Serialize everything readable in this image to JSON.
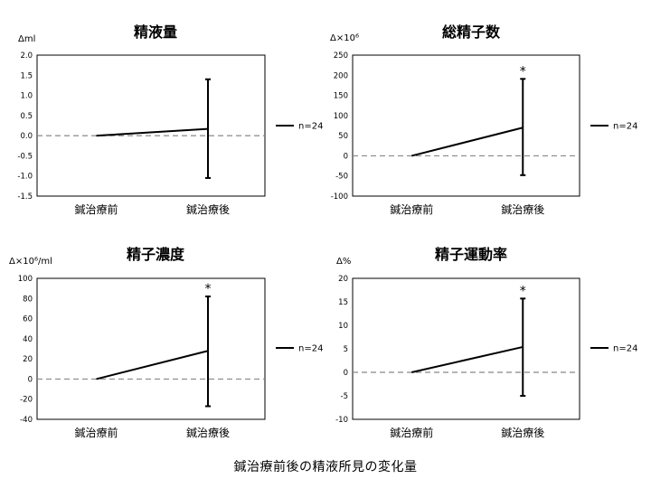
{
  "caption": "鍼治療前後の精液所見の変化量",
  "colors": {
    "line": "#000000",
    "baseline": "#888888",
    "frame": "#000000"
  },
  "chart_data": [
    {
      "type": "line",
      "title": "精液量",
      "ylabel": "Δml",
      "categories": [
        "鍼治療前",
        "鍼治療後"
      ],
      "series": [
        {
          "name": "n=24",
          "values": [
            0,
            0.17
          ]
        }
      ],
      "error_bars": [
        null,
        {
          "low": -1.05,
          "high": 1.4
        }
      ],
      "significance": [
        null,
        ""
      ],
      "ylim": [
        -1.5,
        2.0
      ],
      "yticks": [
        2.0,
        1.5,
        1.0,
        0.5,
        0.0,
        -0.5,
        -1.0,
        -1.5
      ],
      "ytick_labels": [
        "2.0",
        "1.5",
        "1.0",
        "0.5",
        "0.0",
        "-0.5",
        "-1.0",
        "-1.5"
      ],
      "reference_line": 0,
      "legend": "right",
      "grid": false
    },
    {
      "type": "line",
      "title": "総精子数",
      "ylabel": "Δ×10⁶",
      "categories": [
        "鍼治療前",
        "鍼治療後"
      ],
      "series": [
        {
          "name": "n=24",
          "values": [
            0,
            70
          ]
        }
      ],
      "error_bars": [
        null,
        {
          "low": -48,
          "high": 191
        }
      ],
      "significance": [
        null,
        "*"
      ],
      "ylim": [
        -100,
        250
      ],
      "yticks": [
        250,
        200,
        150,
        100,
        50,
        0,
        -50,
        -100
      ],
      "ytick_labels": [
        "250",
        "200",
        "150",
        "100",
        "50",
        "0",
        "-50",
        "-100"
      ],
      "reference_line": 0,
      "legend": "right",
      "grid": false
    },
    {
      "type": "line",
      "title": "精子濃度",
      "ylabel": "Δ×10⁶/ml",
      "categories": [
        "鍼治療前",
        "鍼治療後"
      ],
      "series": [
        {
          "name": "n=24",
          "values": [
            0,
            28
          ]
        }
      ],
      "error_bars": [
        null,
        {
          "low": -27,
          "high": 82
        }
      ],
      "significance": [
        null,
        "*"
      ],
      "ylim": [
        -40,
        100
      ],
      "yticks": [
        100,
        80,
        60,
        40,
        20,
        0,
        -20,
        -40
      ],
      "ytick_labels": [
        "100",
        "80",
        "60",
        "40",
        "20",
        "0",
        "-20",
        "-40"
      ],
      "reference_line": 0,
      "legend": "right",
      "grid": false
    },
    {
      "type": "line",
      "title": "精子運動率",
      "ylabel": "Δ%",
      "categories": [
        "鍼治療前",
        "鍼治療後"
      ],
      "series": [
        {
          "name": "n=24",
          "values": [
            0,
            5.4
          ]
        }
      ],
      "error_bars": [
        null,
        {
          "low": -5,
          "high": 15.7
        }
      ],
      "significance": [
        null,
        "*"
      ],
      "ylim": [
        -10,
        20
      ],
      "yticks": [
        20,
        15,
        10,
        5,
        0,
        -5,
        -10
      ],
      "ytick_labels": [
        "20",
        "15",
        "10",
        "5",
        "0",
        "-5",
        "-10"
      ],
      "reference_line": 0,
      "legend": "right",
      "grid": false
    }
  ]
}
